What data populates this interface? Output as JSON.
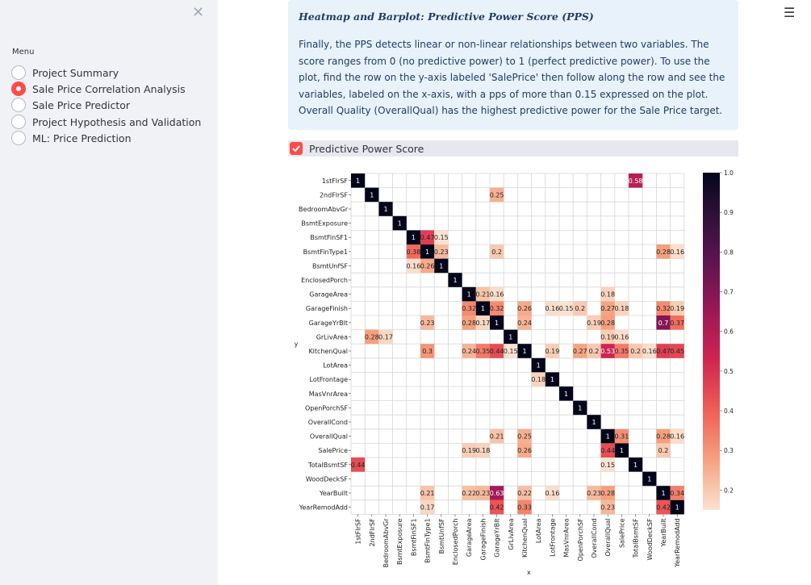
{
  "sidebar": {
    "menu_label": "Menu",
    "items": [
      {
        "label": "Project Summary",
        "selected": false
      },
      {
        "label": "Sale Price Correlation Analysis",
        "selected": true
      },
      {
        "label": "Sale Price Predictor",
        "selected": false
      },
      {
        "label": "Project Hypothesis and Validation",
        "selected": false
      },
      {
        "label": "ML: Price Prediction",
        "selected": false
      }
    ]
  },
  "info": {
    "title": "Heatmap and Barplot: Predictive Power Score (PPS)",
    "text": "Finally, the PPS detects linear or non-linear relationships between two variables. The score ranges from 0 (no predictive power) to 1 (perfect predictive power). To use the plot, find the row on the y-axis labeled 'SalePrice' then follow along the row and see the variables, labeled on the x-axis, with a pps of more than 0.15 expressed on the plot. Overall Quality (OverallQual) has the highest predictive power for the Sale Price target."
  },
  "checkbox": {
    "label": "Predictive Power Score",
    "checked": true
  },
  "colors": {
    "accent": "#ff4b4b",
    "sidebar_bg": "#f0f2f6",
    "info_bg": "#e8f2fb",
    "info_text": "#1e3e62"
  },
  "chart_data": {
    "type": "heatmap",
    "xlabel": "x",
    "ylabel": "y",
    "labels": [
      "1stFlrSF",
      "2ndFlrSF",
      "BedroomAbvGr",
      "BsmtExposure",
      "BsmtFinSF1",
      "BsmtFinType1",
      "BsmtUnfSF",
      "EnclosedPorch",
      "GarageArea",
      "GarageFinish",
      "GarageYrBlt",
      "GrLivArea",
      "KitchenQual",
      "LotArea",
      "LotFrontage",
      "MasVnrArea",
      "OpenPorchSF",
      "OverallCond",
      "OverallQual",
      "SalePrice",
      "TotalBsmtSF",
      "WoodDeckSF",
      "YearBuilt",
      "YearRemodAdd"
    ],
    "cells": [
      {
        "row": 0,
        "col": 0,
        "v": 1
      },
      {
        "row": 0,
        "col": 20,
        "v": 0.58
      },
      {
        "row": 1,
        "col": 1,
        "v": 1
      },
      {
        "row": 1,
        "col": 10,
        "v": 0.25
      },
      {
        "row": 2,
        "col": 2,
        "v": 1
      },
      {
        "row": 3,
        "col": 3,
        "v": 1
      },
      {
        "row": 4,
        "col": 4,
        "v": 1
      },
      {
        "row": 4,
        "col": 5,
        "v": 0.47
      },
      {
        "row": 4,
        "col": 6,
        "v": 0.15
      },
      {
        "row": 5,
        "col": 4,
        "v": 0.38
      },
      {
        "row": 5,
        "col": 5,
        "v": 1
      },
      {
        "row": 5,
        "col": 6,
        "v": 0.23
      },
      {
        "row": 5,
        "col": 10,
        "v": 0.2
      },
      {
        "row": 5,
        "col": 22,
        "v": 0.28
      },
      {
        "row": 5,
        "col": 23,
        "v": 0.16
      },
      {
        "row": 6,
        "col": 4,
        "v": 0.16
      },
      {
        "row": 6,
        "col": 5,
        "v": 0.26
      },
      {
        "row": 6,
        "col": 6,
        "v": 1
      },
      {
        "row": 7,
        "col": 7,
        "v": 1
      },
      {
        "row": 8,
        "col": 8,
        "v": 1
      },
      {
        "row": 8,
        "col": 9,
        "v": 0.21
      },
      {
        "row": 8,
        "col": 10,
        "v": 0.16
      },
      {
        "row": 8,
        "col": 18,
        "v": 0.18
      },
      {
        "row": 9,
        "col": 8,
        "v": 0.32
      },
      {
        "row": 9,
        "col": 9,
        "v": 1
      },
      {
        "row": 9,
        "col": 10,
        "v": 0.32
      },
      {
        "row": 9,
        "col": 12,
        "v": 0.26
      },
      {
        "row": 9,
        "col": 14,
        "v": 0.16
      },
      {
        "row": 9,
        "col": 15,
        "v": 0.15
      },
      {
        "row": 9,
        "col": 16,
        "v": 0.2
      },
      {
        "row": 9,
        "col": 18,
        "v": 0.27
      },
      {
        "row": 9,
        "col": 19,
        "v": 0.18
      },
      {
        "row": 9,
        "col": 22,
        "v": 0.32
      },
      {
        "row": 9,
        "col": 23,
        "v": 0.19
      },
      {
        "row": 10,
        "col": 5,
        "v": 0.23
      },
      {
        "row": 10,
        "col": 8,
        "v": 0.28
      },
      {
        "row": 10,
        "col": 9,
        "v": 0.17
      },
      {
        "row": 10,
        "col": 10,
        "v": 1
      },
      {
        "row": 10,
        "col": 12,
        "v": 0.24
      },
      {
        "row": 10,
        "col": 17,
        "v": 0.19
      },
      {
        "row": 10,
        "col": 18,
        "v": 0.28
      },
      {
        "row": 10,
        "col": 22,
        "v": 0.7
      },
      {
        "row": 10,
        "col": 23,
        "v": 0.37
      },
      {
        "row": 11,
        "col": 1,
        "v": 0.28
      },
      {
        "row": 11,
        "col": 2,
        "v": 0.17
      },
      {
        "row": 11,
        "col": 11,
        "v": 1
      },
      {
        "row": 11,
        "col": 18,
        "v": 0.19
      },
      {
        "row": 11,
        "col": 19,
        "v": 0.16
      },
      {
        "row": 12,
        "col": 5,
        "v": 0.3
      },
      {
        "row": 12,
        "col": 8,
        "v": 0.24
      },
      {
        "row": 12,
        "col": 9,
        "v": 0.35
      },
      {
        "row": 12,
        "col": 10,
        "v": 0.44
      },
      {
        "row": 12,
        "col": 11,
        "v": 0.15
      },
      {
        "row": 12,
        "col": 12,
        "v": 1
      },
      {
        "row": 12,
        "col": 14,
        "v": 0.19
      },
      {
        "row": 12,
        "col": 16,
        "v": 0.27
      },
      {
        "row": 12,
        "col": 17,
        "v": 0.2
      },
      {
        "row": 12,
        "col": 18,
        "v": 0.53
      },
      {
        "row": 12,
        "col": 19,
        "v": 0.35
      },
      {
        "row": 12,
        "col": 20,
        "v": 0.2
      },
      {
        "row": 12,
        "col": 21,
        "v": 0.16
      },
      {
        "row": 12,
        "col": 22,
        "v": 0.47
      },
      {
        "row": 12,
        "col": 23,
        "v": 0.45
      },
      {
        "row": 13,
        "col": 13,
        "v": 1
      },
      {
        "row": 14,
        "col": 13,
        "v": 0.18
      },
      {
        "row": 14,
        "col": 14,
        "v": 1
      },
      {
        "row": 15,
        "col": 15,
        "v": 1
      },
      {
        "row": 16,
        "col": 16,
        "v": 1
      },
      {
        "row": 17,
        "col": 17,
        "v": 1
      },
      {
        "row": 18,
        "col": 10,
        "v": 0.21
      },
      {
        "row": 18,
        "col": 12,
        "v": 0.25
      },
      {
        "row": 18,
        "col": 18,
        "v": 1
      },
      {
        "row": 18,
        "col": 19,
        "v": 0.31
      },
      {
        "row": 18,
        "col": 22,
        "v": 0.28
      },
      {
        "row": 18,
        "col": 23,
        "v": 0.16
      },
      {
        "row": 19,
        "col": 8,
        "v": 0.19
      },
      {
        "row": 19,
        "col": 9,
        "v": 0.18
      },
      {
        "row": 19,
        "col": 12,
        "v": 0.26
      },
      {
        "row": 19,
        "col": 18,
        "v": 0.44
      },
      {
        "row": 19,
        "col": 19,
        "v": 1
      },
      {
        "row": 19,
        "col": 22,
        "v": 0.2
      },
      {
        "row": 20,
        "col": 0,
        "v": 0.44
      },
      {
        "row": 20,
        "col": 18,
        "v": 0.15
      },
      {
        "row": 20,
        "col": 20,
        "v": 1
      },
      {
        "row": 21,
        "col": 21,
        "v": 1
      },
      {
        "row": 22,
        "col": 5,
        "v": 0.21
      },
      {
        "row": 22,
        "col": 8,
        "v": 0.22
      },
      {
        "row": 22,
        "col": 9,
        "v": 0.23
      },
      {
        "row": 22,
        "col": 10,
        "v": 0.63
      },
      {
        "row": 22,
        "col": 12,
        "v": 0.22
      },
      {
        "row": 22,
        "col": 14,
        "v": 0.16
      },
      {
        "row": 22,
        "col": 17,
        "v": 0.23
      },
      {
        "row": 22,
        "col": 18,
        "v": 0.28
      },
      {
        "row": 22,
        "col": 22,
        "v": 1
      },
      {
        "row": 22,
        "col": 23,
        "v": 0.34
      },
      {
        "row": 23,
        "col": 5,
        "v": 0.17
      },
      {
        "row": 23,
        "col": 10,
        "v": 0.42
      },
      {
        "row": 23,
        "col": 12,
        "v": 0.33
      },
      {
        "row": 23,
        "col": 18,
        "v": 0.23
      },
      {
        "row": 23,
        "col": 22,
        "v": 0.42
      },
      {
        "row": 23,
        "col": 23,
        "v": 1
      }
    ],
    "colorbar": {
      "range": [
        0.15,
        1.0
      ],
      "ticks": [
        "0.2",
        "0.3",
        "0.4",
        "0.5",
        "0.6",
        "0.7",
        "0.8",
        "0.9",
        "1.0"
      ]
    },
    "grid": true
  }
}
